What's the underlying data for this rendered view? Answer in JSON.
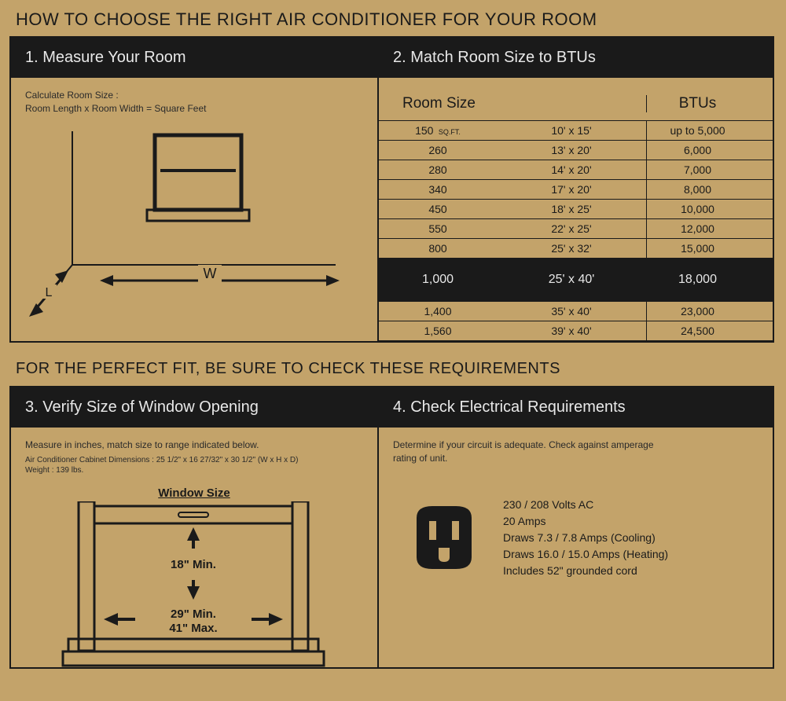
{
  "colors": {
    "bg": "#c3a36a",
    "ink": "#1a1a1a",
    "header_text": "#e8e8e8"
  },
  "title1": "HOW TO CHOOSE THE RIGHT AIR CONDITIONER FOR YOUR ROOM",
  "title2": "FOR THE PERFECT FIT, BE SURE TO CHECK THESE REQUIREMENTS",
  "section1": {
    "header": "1. Measure Your Room",
    "line1": "Calculate Room Size :",
    "line2": "Room Length x Room Width = Square Feet",
    "label_w": "W",
    "label_l": "L"
  },
  "section2": {
    "header": "2. Match Room Size to BTUs",
    "col_roomsize": "Room Size",
    "col_btus": "BTUs",
    "sqft_unit": "SQ.FT.",
    "rows": [
      {
        "sqft": "150",
        "dims": "10' x 15'",
        "btu": "up to 5,000",
        "highlight": false,
        "show_unit": true
      },
      {
        "sqft": "260",
        "dims": "13' x 20'",
        "btu": "6,000",
        "highlight": false
      },
      {
        "sqft": "280",
        "dims": "14' x 20'",
        "btu": "7,000",
        "highlight": false
      },
      {
        "sqft": "340",
        "dims": "17' x 20'",
        "btu": "8,000",
        "highlight": false
      },
      {
        "sqft": "450",
        "dims": "18' x 25'",
        "btu": "10,000",
        "highlight": false
      },
      {
        "sqft": "550",
        "dims": "22' x 25'",
        "btu": "12,000",
        "highlight": false
      },
      {
        "sqft": "800",
        "dims": "25' x 32'",
        "btu": "15,000",
        "highlight": false
      },
      {
        "sqft": "1,000",
        "dims": "25' x 40'",
        "btu": "18,000",
        "highlight": true
      },
      {
        "sqft": "1,400",
        "dims": "35' x 40'",
        "btu": "23,000",
        "highlight": false
      },
      {
        "sqft": "1,560",
        "dims": "39' x 40'",
        "btu": "24,500",
        "highlight": false
      }
    ]
  },
  "section3": {
    "header": "3. Verify Size of Window Opening",
    "line1": "Measure in inches, match size to range indicated below.",
    "line2": "Air Conditioner Cabinet Dimensions : 25 1/2\" x 16 27/32\" x 30 1/2\" (W x H x D)",
    "line3": "Weight : 139 lbs.",
    "window_size_label": "Window Size",
    "height_min": "18\" Min.",
    "width_min": "29\" Min.",
    "width_max": "41\" Max."
  },
  "section4": {
    "header": "4. Check Electrical Requirements",
    "line1": "Determine if your circuit is adequate. Check against amperage rating of unit.",
    "spec1": "230 / 208 Volts AC",
    "spec2": "20 Amps",
    "spec3": "Draws 7.3 / 7.8 Amps (Cooling)",
    "spec4": "Draws 16.0 / 15.0 Amps (Heating)",
    "spec5": "Includes 52\" grounded cord"
  }
}
